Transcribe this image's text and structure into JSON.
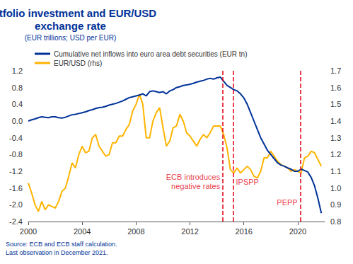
{
  "chart_data": {
    "type": "line",
    "title": "Portfolio investment and EUR/USD exchange rate",
    "subtitle": "(EUR trillions; USD per EUR)",
    "x": [
      2000.0,
      2000.25,
      2000.5,
      2000.75,
      2001.0,
      2001.25,
      2001.5,
      2001.75,
      2002.0,
      2002.25,
      2002.5,
      2002.75,
      2003.0,
      2003.25,
      2003.5,
      2003.75,
      2004.0,
      2004.25,
      2004.5,
      2004.75,
      2005.0,
      2005.25,
      2005.5,
      2005.75,
      2006.0,
      2006.25,
      2006.5,
      2006.75,
      2007.0,
      2007.25,
      2007.5,
      2007.75,
      2008.0,
      2008.25,
      2008.5,
      2008.75,
      2009.0,
      2009.25,
      2009.5,
      2009.75,
      2010.0,
      2010.25,
      2010.5,
      2010.75,
      2011.0,
      2011.25,
      2011.5,
      2011.75,
      2012.0,
      2012.25,
      2012.5,
      2012.75,
      2013.0,
      2013.25,
      2013.5,
      2013.75,
      2014.0,
      2014.25,
      2014.5,
      2014.75,
      2015.0,
      2015.25,
      2015.5,
      2015.75,
      2016.0,
      2016.25,
      2016.5,
      2016.75,
      2017.0,
      2017.25,
      2017.5,
      2017.75,
      2018.0,
      2018.25,
      2018.5,
      2018.75,
      2019.0,
      2019.25,
      2019.5,
      2019.75,
      2020.0,
      2020.25,
      2020.5,
      2020.75,
      2021.0,
      2021.25,
      2021.5,
      2021.75
    ],
    "series": [
      {
        "name": "Cumulative net inflows into euro area debt securities (EUR tn)",
        "color": "#003299",
        "values": [
          0.0,
          0.03,
          0.05,
          0.08,
          0.1,
          0.09,
          0.08,
          0.1,
          0.1,
          0.08,
          0.07,
          0.09,
          0.12,
          0.15,
          0.16,
          0.18,
          0.2,
          0.22,
          0.25,
          0.27,
          0.3,
          0.32,
          0.33,
          0.35,
          0.38,
          0.4,
          0.42,
          0.45,
          0.48,
          0.52,
          0.56,
          0.58,
          0.6,
          0.62,
          0.65,
          0.6,
          0.7,
          0.72,
          0.7,
          0.68,
          0.7,
          0.65,
          0.72,
          0.75,
          0.8,
          0.82,
          0.85,
          0.86,
          0.88,
          0.9,
          0.93,
          0.95,
          0.97,
          1.0,
          1.02,
          1.0,
          1.03,
          1.05,
          0.95,
          0.85,
          0.8,
          0.75,
          0.72,
          0.65,
          0.55,
          0.4,
          0.2,
          0.0,
          -0.2,
          -0.4,
          -0.55,
          -0.7,
          -0.8,
          -0.9,
          -1.0,
          -1.05,
          -1.08,
          -1.12,
          -1.15,
          -1.2,
          -1.2,
          -1.15,
          -1.18,
          -1.22,
          -1.35,
          -1.55,
          -1.85,
          -2.2
        ]
      },
      {
        "name": "EUR/USD (rhs)",
        "color": "#ffb400",
        "axis": "y2",
        "values": [
          1.03,
          0.97,
          0.9,
          0.86,
          0.92,
          0.87,
          0.9,
          0.89,
          0.88,
          0.92,
          0.98,
          1.0,
          1.07,
          1.15,
          1.12,
          1.2,
          1.25,
          1.21,
          1.22,
          1.3,
          1.32,
          1.25,
          1.22,
          1.19,
          1.2,
          1.27,
          1.27,
          1.31,
          1.31,
          1.35,
          1.38,
          1.46,
          1.5,
          1.56,
          1.5,
          1.3,
          1.3,
          1.4,
          1.45,
          1.48,
          1.36,
          1.25,
          1.28,
          1.36,
          1.37,
          1.44,
          1.4,
          1.33,
          1.31,
          1.28,
          1.25,
          1.29,
          1.32,
          1.3,
          1.33,
          1.37,
          1.37,
          1.37,
          1.32,
          1.24,
          1.11,
          1.09,
          1.12,
          1.09,
          1.11,
          1.13,
          1.11,
          1.07,
          1.06,
          1.1,
          1.18,
          1.18,
          1.22,
          1.19,
          1.16,
          1.14,
          1.13,
          1.12,
          1.1,
          1.11,
          1.1,
          1.09,
          1.18,
          1.19,
          1.22,
          1.21,
          1.17,
          1.13
        ]
      }
    ],
    "xlim": [
      2000,
      2022
    ],
    "xticks": [
      2000,
      2004,
      2008,
      2012,
      2016,
      2020
    ],
    "ylim": [
      -2.4,
      1.2
    ],
    "yticks": [
      -2.4,
      {
        "value": -2,
        "label": "-2.0"
      },
      -1.6,
      -1.2,
      -0.8,
      -0.4,
      {
        "value": 0,
        "label": "0.0"
      },
      0.4,
      0.8,
      1.2
    ],
    "y2lim": [
      0.8,
      1.7
    ],
    "y2ticks": [
      0.8,
      0.9,
      {
        "value": 1,
        "label": "1.0"
      },
      1.1,
      1.2,
      1.3,
      1.4,
      1.5,
      1.6,
      1.7
    ],
    "reference_lines": [
      {
        "x": 2014.45,
        "label": "ECB introduces\nnegative rates",
        "label_y": -1.45,
        "color": "#e3000f",
        "line_style": "dashed"
      },
      {
        "x": 2015.2,
        "label": "IPSPP",
        "label_y": -1.45,
        "color": "#e3000f",
        "line_style": "dashed"
      },
      {
        "x": 2020.2,
        "label": "PEPP",
        "label_y": -1.95,
        "color": "#e3000f",
        "line_style": "dashed"
      }
    ],
    "source": [
      "Source: ECB and ECB staff calculation.",
      "Last observation in December 2021."
    ],
    "legend": "upper left",
    "grid": false
  }
}
